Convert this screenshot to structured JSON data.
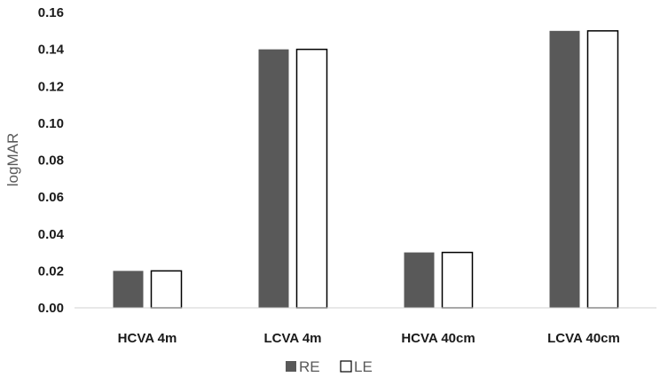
{
  "chart_data": {
    "type": "bar",
    "title": "",
    "xlabel": "",
    "ylabel": "logMAR",
    "categories": [
      "HCVA 4m",
      "LCVA 4m",
      "HCVA 40cm",
      "LCVA 40cm"
    ],
    "series": [
      {
        "name": "RE",
        "values": [
          0.02,
          0.14,
          0.03,
          0.15
        ],
        "color": "#595959"
      },
      {
        "name": "LE",
        "values": [
          0.02,
          0.14,
          0.03,
          0.15
        ],
        "color": "#ffffff"
      }
    ],
    "ylim": [
      0,
      0.16
    ],
    "yticks": [
      "0.00",
      "0.02",
      "0.04",
      "0.06",
      "0.08",
      "0.10",
      "0.12",
      "0.14",
      "0.16"
    ],
    "grid": false,
    "legend": "bottom-center"
  }
}
